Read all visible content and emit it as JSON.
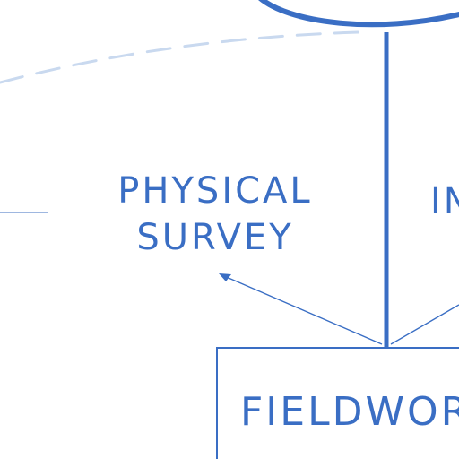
{
  "diagram": {
    "labels": {
      "physical_survey_line1": "PHYSICAL",
      "physical_survey_line2": "SURVEY",
      "right_partial": "IN",
      "fieldwork_box": "FIELDWOR"
    },
    "colors": {
      "ink": "#3a6ec4",
      "dashed": "#c9d9ef",
      "thin_line": "#7f9fd6"
    }
  }
}
